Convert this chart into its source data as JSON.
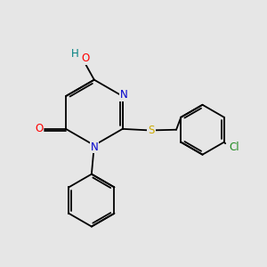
{
  "background_color": "#e6e6e6",
  "fig_size": [
    3.0,
    3.0
  ],
  "dpi": 100,
  "bond_color": "#000000",
  "bond_lw": 1.3,
  "atom_colors": {
    "N": "#0000cc",
    "O": "#ff0000",
    "S": "#ccaa00",
    "Cl": "#228B22",
    "H": "#008080"
  },
  "font_size": 8.5
}
